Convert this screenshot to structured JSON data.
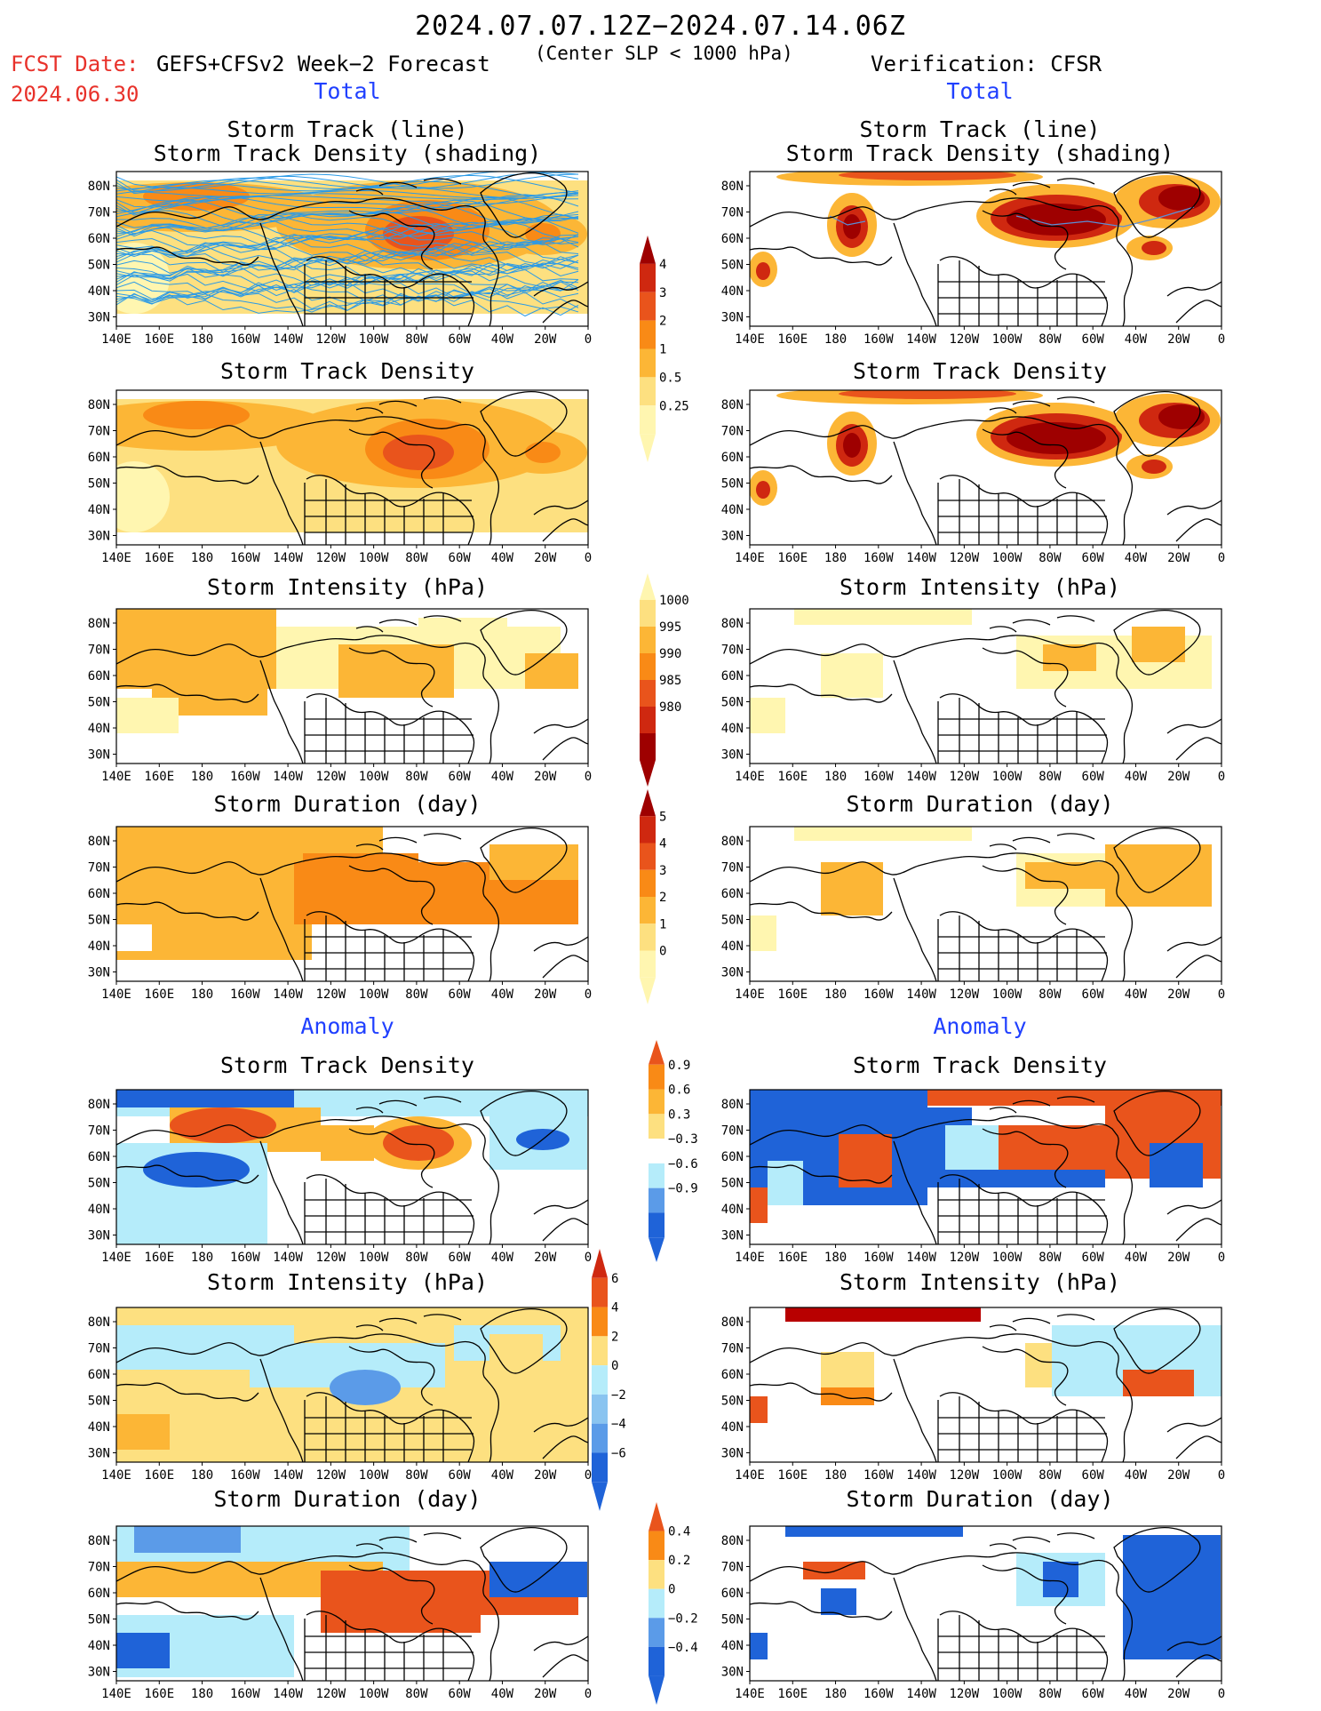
{
  "header": {
    "date_range": "2024.07.07.12Z−2024.07.14.06Z",
    "fcst_label": "FCST Date:",
    "forecast_name": "GEFS+CFSv2 Week−2 Forecast",
    "center_slp": "(Center SLP < 1000 hPa)",
    "verification": "Verification: CFSR",
    "fcst_date": "2024.06.30"
  },
  "sections": {
    "total": "Total",
    "anomaly": "Anomaly"
  },
  "titles": {
    "track_line": "Storm Track (line)",
    "track_shading": "Storm Track Density (shading)",
    "density": "Storm Track Density",
    "intensity": "Storm Intensity (hPa)",
    "duration": "Storm Duration (day)"
  },
  "axes": {
    "lon_ticks": [
      "140E",
      "160E",
      "180",
      "160W",
      "140W",
      "120W",
      "100W",
      "80W",
      "60W",
      "40W",
      "20W",
      "0"
    ],
    "lat_ticks": [
      "80N",
      "70N",
      "60N",
      "50N",
      "40N",
      "30N"
    ]
  },
  "colorbars": {
    "density": {
      "labels": [
        "4",
        "3",
        "2",
        "1",
        "0.5",
        "0.25"
      ]
    },
    "intensity": {
      "labels": [
        "1000",
        "995",
        "990",
        "985",
        "980"
      ]
    },
    "duration": {
      "labels": [
        "5",
        "4",
        "3",
        "2",
        "1",
        "0"
      ]
    },
    "anom_density": {
      "labels": [
        "0.9",
        "0.6",
        "0.3",
        "−0.3",
        "−0.6",
        "−0.9"
      ]
    },
    "anom_intensity": {
      "labels": [
        "6",
        "4",
        "2",
        "0",
        "−2",
        "−4",
        "−6"
      ]
    },
    "anom_duration": {
      "labels": [
        "0.4",
        "0.2",
        "0",
        "−0.2",
        "−0.4"
      ]
    }
  },
  "colors": {
    "seq": [
      "#fff6b0",
      "#fde080",
      "#fcb636",
      "#f98a16",
      "#e9541c",
      "#cf2810",
      "#9e0000"
    ],
    "blue_dark": "#1f63d8",
    "blue_light": "#b5ecfa",
    "track_line": "#2b9ae6"
  }
}
